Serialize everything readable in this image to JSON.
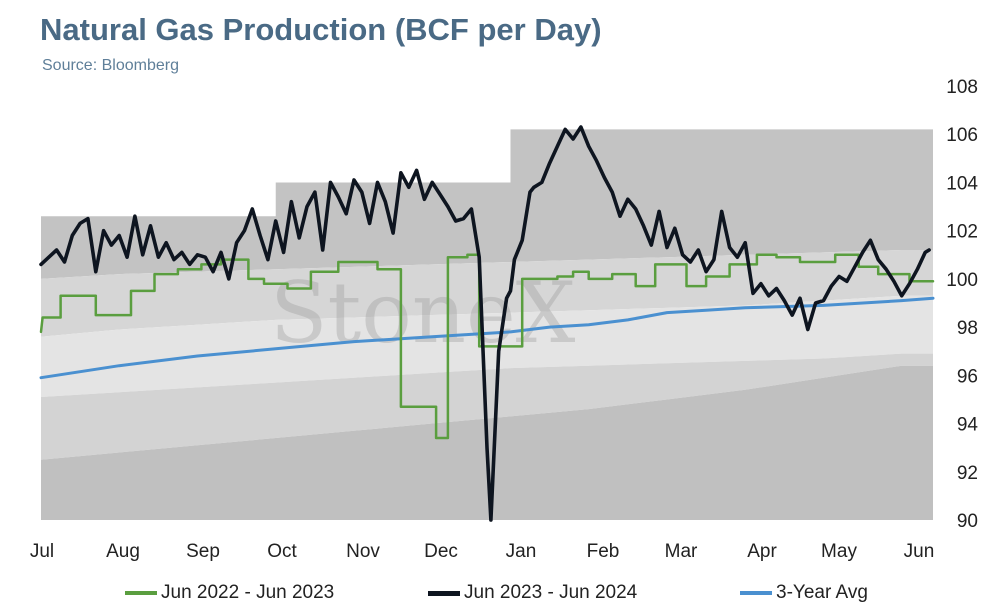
{
  "chart_data": {
    "type": "line",
    "title": "Natural Gas Production (BCF per Day)",
    "subtitle": "Source: Bloomberg",
    "watermark": "StoneX",
    "ylim": [
      90,
      108
    ],
    "yticks": [
      90,
      92,
      94,
      96,
      98,
      100,
      102,
      104,
      106,
      108
    ],
    "x_months": [
      "Jul",
      "Aug",
      "Sep",
      "Oct",
      "Nov",
      "Dec",
      "Jan",
      "Feb",
      "Mar",
      "Apr",
      "May",
      "Jun"
    ],
    "grid": false,
    "legend_position": "bottom",
    "bands": {
      "x": [
        0,
        1,
        2,
        3,
        4,
        5,
        6,
        7,
        8,
        9,
        10,
        11
      ],
      "max": [
        102.6,
        102.6,
        102.6,
        104.0,
        104.0,
        104.0,
        106.2,
        106.2,
        106.2,
        106.2,
        106.2,
        106.2
      ],
      "upper": [
        100.0,
        100.2,
        100.3,
        100.4,
        100.5,
        100.6,
        100.7,
        100.8,
        100.9,
        101.0,
        101.1,
        101.2
      ],
      "mid": [
        97.6,
        97.9,
        98.1,
        98.3,
        98.4,
        98.5,
        98.6,
        98.7,
        98.8,
        98.9,
        99.1,
        99.3
      ],
      "lower": [
        95.1,
        95.3,
        95.5,
        95.7,
        95.9,
        96.1,
        96.3,
        96.4,
        96.5,
        96.6,
        96.7,
        96.9
      ],
      "min": [
        92.5,
        92.8,
        93.1,
        93.4,
        93.7,
        94.0,
        94.3,
        94.6,
        95.0,
        95.4,
        95.9,
        96.4
      ]
    },
    "series": [
      {
        "name": "Jun 2022 - Jun 2023",
        "color": "#5a9e3f",
        "x": [
          0,
          0.02,
          0.08,
          0.12,
          0.25,
          0.25,
          0.7,
          0.7,
          1.15,
          1.15,
          1.45,
          1.45,
          1.75,
          1.75,
          2.05,
          2.05,
          2.3,
          2.3,
          2.65,
          2.65,
          2.85,
          2.85,
          3.15,
          3.15,
          3.45,
          3.45,
          3.8,
          3.8,
          4.3,
          4.3,
          4.6,
          4.6,
          5.05,
          5.05,
          5.2,
          5.2,
          5.45,
          5.45,
          5.6,
          5.6,
          6.15,
          6.15,
          6.6,
          6.6,
          6.8,
          6.8,
          7.0,
          7.0,
          7.3,
          7.3,
          7.6,
          7.6,
          7.85,
          7.85,
          8.25,
          8.25,
          8.5,
          8.5,
          8.8,
          8.8,
          9.15,
          9.15,
          9.4,
          9.4,
          9.7,
          9.7,
          10.15,
          10.15,
          10.45,
          10.45,
          10.7,
          10.7,
          11.1,
          11.1,
          11.4
        ],
        "values": [
          97.8,
          98.4,
          98.4,
          98.4,
          98.4,
          99.3,
          99.3,
          98.5,
          98.5,
          99.5,
          99.5,
          100.2,
          100.2,
          100.4,
          100.4,
          100.6,
          100.6,
          100.8,
          100.8,
          100.0,
          100.0,
          99.8,
          99.8,
          99.6,
          99.6,
          100.3,
          100.3,
          100.7,
          100.7,
          100.4,
          100.4,
          94.7,
          94.7,
          93.4,
          93.4,
          100.9,
          100.9,
          101.0,
          101.0,
          97.2,
          97.2,
          100.0,
          100.0,
          100.1,
          100.1,
          100.3,
          100.3,
          100.0,
          100.0,
          100.2,
          100.2,
          99.7,
          99.7,
          100.6,
          100.6,
          99.7,
          99.7,
          100.1,
          100.1,
          100.6,
          100.6,
          101.0,
          101.0,
          100.9,
          100.9,
          100.7,
          100.7,
          101.0,
          101.0,
          100.5,
          100.5,
          100.2,
          100.2,
          99.9,
          99.9
        ]
      },
      {
        "name": "Jun 2023 - Jun 2024",
        "color": "#0e1520",
        "x": [
          0,
          0.1,
          0.2,
          0.3,
          0.4,
          0.5,
          0.6,
          0.7,
          0.8,
          0.9,
          1.0,
          1.1,
          1.2,
          1.3,
          1.4,
          1.5,
          1.6,
          1.7,
          1.8,
          1.9,
          2.0,
          2.1,
          2.2,
          2.3,
          2.4,
          2.5,
          2.6,
          2.7,
          2.8,
          2.9,
          3.0,
          3.1,
          3.2,
          3.3,
          3.4,
          3.5,
          3.6,
          3.7,
          3.8,
          3.9,
          4.0,
          4.1,
          4.2,
          4.3,
          4.4,
          4.5,
          4.6,
          4.7,
          4.8,
          4.9,
          5.0,
          5.1,
          5.2,
          5.3,
          5.4,
          5.5,
          5.6,
          5.7,
          5.75,
          5.85,
          5.95,
          6.0,
          6.05,
          6.15,
          6.25,
          6.3,
          6.4,
          6.5,
          6.6,
          6.7,
          6.8,
          6.9,
          7.0,
          7.1,
          7.2,
          7.3,
          7.4,
          7.5,
          7.6,
          7.7,
          7.8,
          7.9,
          8.0,
          8.1,
          8.2,
          8.3,
          8.4,
          8.5,
          8.6,
          8.7,
          8.8,
          8.9,
          9.0,
          9.1,
          9.2,
          9.3,
          9.4,
          9.5,
          9.6,
          9.7,
          9.8,
          9.9,
          10.0,
          10.1,
          10.2,
          10.3,
          10.4,
          10.5,
          10.6,
          10.7,
          10.8,
          10.9,
          11.0,
          11.1,
          11.2,
          11.3,
          11.35
        ],
        "values": [
          100.6,
          100.9,
          101.2,
          100.7,
          101.8,
          102.3,
          102.5,
          100.3,
          102.0,
          101.4,
          101.8,
          100.9,
          102.6,
          101.0,
          102.2,
          100.9,
          101.5,
          100.8,
          101.1,
          100.6,
          101.0,
          100.9,
          100.3,
          101.1,
          100.0,
          101.5,
          102.0,
          102.9,
          101.8,
          100.8,
          102.4,
          101.1,
          103.2,
          101.7,
          103.0,
          103.6,
          101.2,
          104.0,
          103.4,
          102.7,
          104.1,
          103.6,
          102.3,
          104.0,
          103.2,
          101.9,
          104.4,
          103.8,
          104.5,
          103.3,
          104.0,
          103.5,
          103.0,
          102.4,
          102.5,
          102.9,
          100.9,
          93.0,
          89.9,
          97.0,
          99.2,
          99.5,
          100.8,
          101.6,
          103.6,
          103.8,
          104.0,
          104.8,
          105.5,
          106.2,
          105.8,
          106.3,
          105.5,
          104.9,
          104.2,
          103.6,
          102.6,
          103.3,
          102.9,
          102.2,
          101.4,
          102.8,
          101.3,
          102.1,
          101.0,
          100.7,
          101.2,
          100.3,
          100.8,
          102.8,
          101.3,
          100.9,
          101.5,
          99.4,
          99.8,
          99.3,
          99.6,
          99.1,
          98.5,
          99.2,
          97.9,
          99.0,
          99.1,
          99.7,
          100.1,
          99.9,
          100.5,
          101.1,
          101.6,
          100.8,
          100.4,
          99.9,
          99.3,
          99.8,
          100.4,
          101.1,
          101.2
        ]
      },
      {
        "name": "3-Year Avg",
        "color": "#4a90d0",
        "x": [
          0,
          1,
          2,
          3,
          4,
          5,
          6,
          6.5,
          7,
          7.5,
          8,
          8.5,
          9,
          10,
          11,
          11.4
        ],
        "values": [
          95.9,
          96.4,
          96.8,
          97.1,
          97.4,
          97.6,
          97.8,
          98.0,
          98.1,
          98.3,
          98.6,
          98.7,
          98.8,
          98.9,
          99.1,
          99.2
        ]
      }
    ]
  }
}
